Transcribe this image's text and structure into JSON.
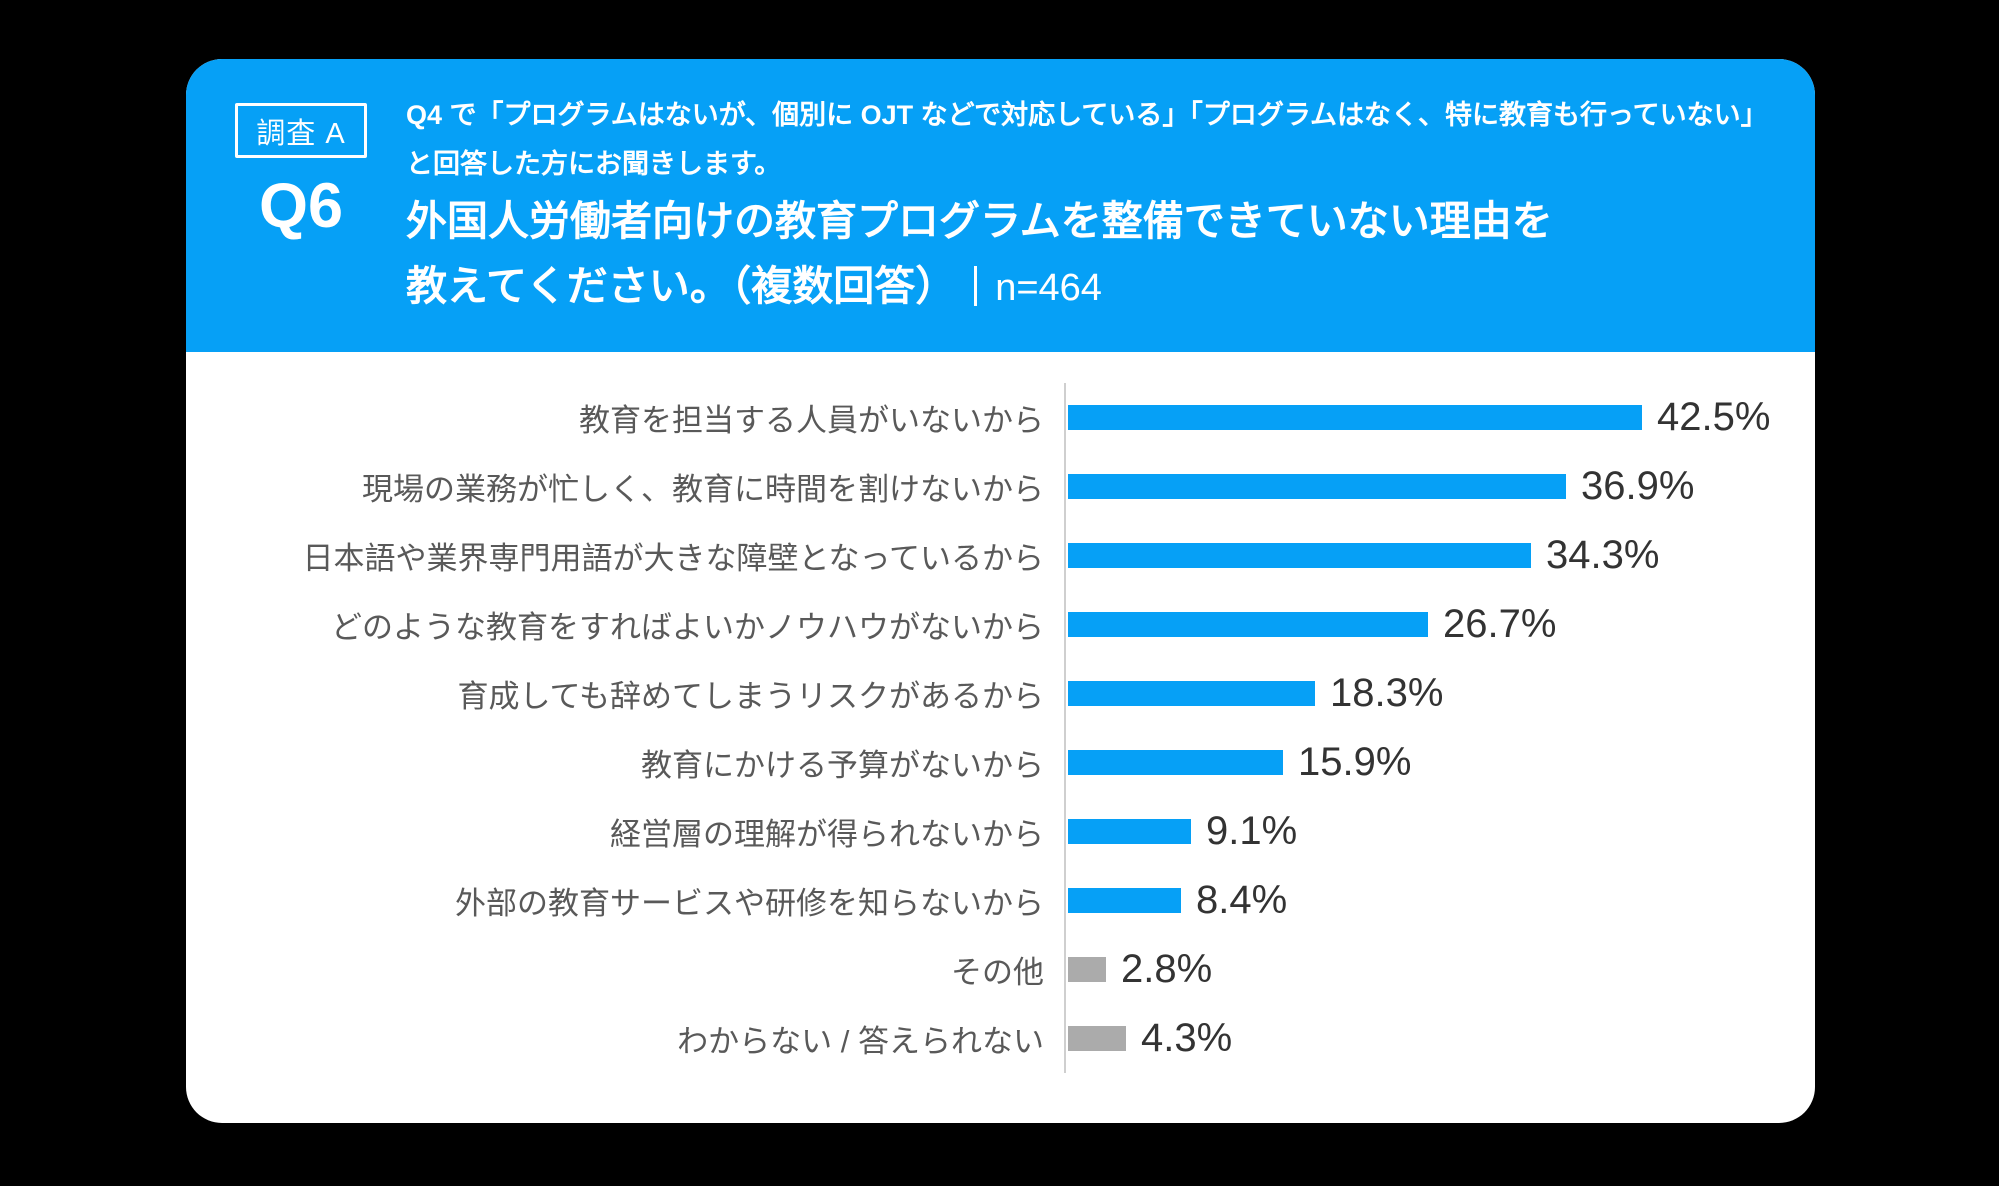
{
  "header": {
    "badge_label": "調査 A",
    "question_number": "Q6",
    "condition_line1": "Q4 で「プログラムはないが、個別に OJT などで対応している」「プログラムはなく、特に教育も行っていない」",
    "condition_line2": "と回答した方にお聞きします。",
    "title_line1": "外国人労働者向けの教育プログラムを整備できていない理由を",
    "title_line2": "教えてください。（複数回答）",
    "sample_size_label": "n=464"
  },
  "chart_data": {
    "type": "bar",
    "orientation": "horizontal",
    "title": "外国人労働者向けの教育プログラムを整備できていない理由（複数回答）",
    "n": 464,
    "unit": "%",
    "xlim": [
      0,
      45
    ],
    "grid": false,
    "legend": false,
    "categories": [
      "教育を担当する人員がいないから",
      "現場の業務が忙しく、教育に時間を割けないから",
      "日本語や業界専門用語が大きな障壁となっているから",
      "どのような教育をすればよいかノウハウがないから",
      "育成しても辞めてしまうリスクがあるから",
      "教育にかける予算がないから",
      "経営層の理解が得られないから",
      "外部の教育サービスや研修を知らないから",
      "その他",
      "わからない / 答えられない"
    ],
    "values": [
      42.5,
      36.9,
      34.3,
      26.7,
      18.3,
      15.9,
      9.1,
      8.4,
      2.8,
      4.3
    ],
    "value_labels": [
      "42.5%",
      "36.9%",
      "34.3%",
      "26.7%",
      "18.3%",
      "15.9%",
      "9.1%",
      "8.4%",
      "2.8%",
      "4.3%"
    ],
    "bar_colors": [
      "#06A0F6",
      "#06A0F6",
      "#06A0F6",
      "#06A0F6",
      "#06A0F6",
      "#06A0F6",
      "#06A0F6",
      "#06A0F6",
      "#ABABAB",
      "#ABABAB"
    ],
    "accent_color": "#06A0F6",
    "muted_color": "#ABABAB"
  },
  "colors": {
    "page_bg": "#000000",
    "card_bg": "#FFFFFF",
    "header_bg": "#06A0F6",
    "axis_line": "#CFCFCF",
    "label_text": "#595959",
    "value_text": "#333333"
  }
}
